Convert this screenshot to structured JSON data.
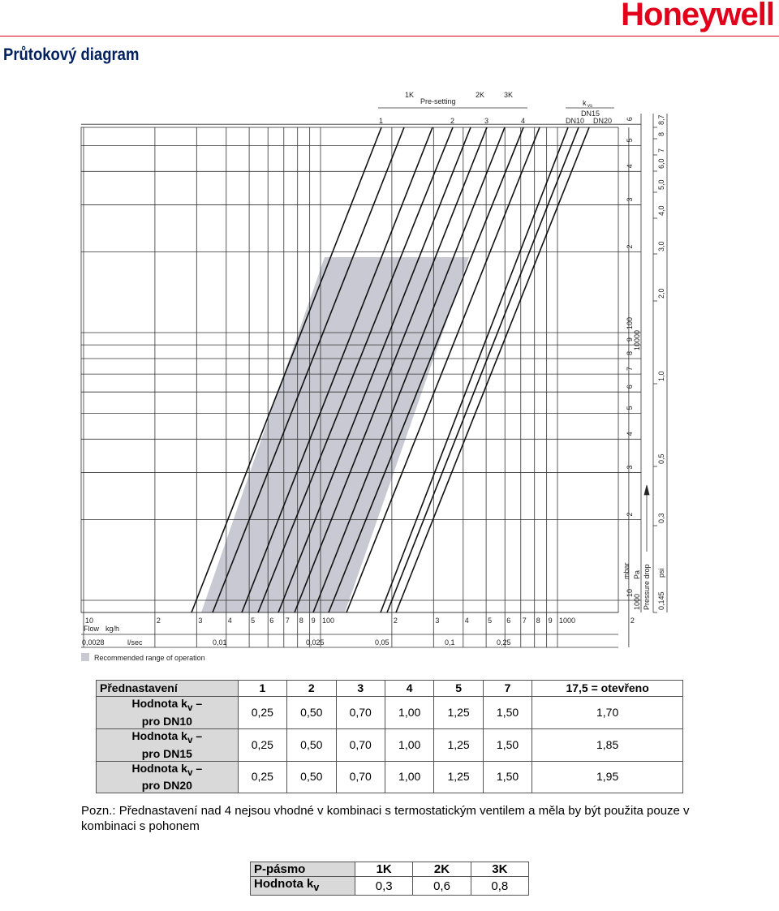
{
  "header": {
    "logo": "Honeywell",
    "title": "Průtokový diagram"
  },
  "diagram": {
    "top": {
      "band": "Pre-setting",
      "band_marks": [
        "1K",
        "2K",
        "3K"
      ],
      "line_marks": [
        "1",
        "2",
        "3",
        "4"
      ],
      "kvs": "k",
      "kvs_sub": "vs",
      "dn": [
        "DN15",
        "DN10",
        "DN20"
      ]
    },
    "flow_label": "Flow",
    "kg_h": "kg/h",
    "l_sec": "l/sec",
    "kg_h_ticks": [
      "10",
      "2",
      "3",
      "4",
      "5",
      "6",
      "7",
      "8",
      "9",
      "100",
      "2",
      "3",
      "4",
      "5",
      "6",
      "7",
      "8",
      "9",
      "1000",
      "2"
    ],
    "l_sec_ticks": [
      "0,0028",
      "0,01",
      "0,025",
      "0,05",
      "0,1",
      "0,25"
    ],
    "mbar_ticks": [
      "10",
      "2",
      "3",
      "4",
      "5",
      "6",
      "7",
      "8",
      "9",
      "100",
      "2",
      "3",
      "4",
      "5",
      "6"
    ],
    "pa_ticks": [
      "1000",
      "10000"
    ],
    "psi_ticks": [
      "0,145",
      "0,3",
      "0,5",
      "1,0",
      "2,0",
      "3,0",
      "4,0",
      "5,0",
      "6,0",
      "7",
      "8",
      "8,7"
    ],
    "mbar": "mbar",
    "pa": "Pa",
    "pressure_drop": "Pressure drop",
    "psi": "psi",
    "legend": "Recommended range of operation"
  },
  "table": {
    "header": [
      "Přednastavení",
      "1",
      "2",
      "3",
      "4",
      "5",
      "7",
      "17,5 = otevřeno"
    ],
    "rows": [
      {
        "label": {
          "pre": "Hodnota k",
          "sub": "v",
          "post": " –",
          "line2": "pro DN10"
        },
        "values": [
          "0,25",
          "0,50",
          "0,70",
          "1,00",
          "1,25",
          "1,50",
          "1,70"
        ]
      },
      {
        "label": {
          "pre": "Hodnota k",
          "sub": "v",
          "post": " –",
          "line2": "pro DN15"
        },
        "values": [
          "0,25",
          "0,50",
          "0,70",
          "1,00",
          "1,25",
          "1,50",
          "1,85"
        ]
      },
      {
        "label": {
          "pre": "Hodnota k",
          "sub": "v",
          "post": " –",
          "line2": "pro DN20"
        },
        "values": [
          "0,25",
          "0,50",
          "0,70",
          "1,00",
          "1,25",
          "1,50",
          "1,95"
        ]
      }
    ]
  },
  "note": "Pozn.: Přednastavení nad 4 nejsou vhodné v kombinaci s termostatickým ventilem a měla by být použita pouze v kombinaci s pohonem",
  "ptable": {
    "header": [
      "P-pásmo",
      "1K",
      "2K",
      "3K"
    ],
    "row": {
      "label": {
        "pre": "Hodnota k",
        "sub": "v"
      },
      "values": [
        "0,3",
        "0,6",
        "0,8"
      ]
    }
  }
}
